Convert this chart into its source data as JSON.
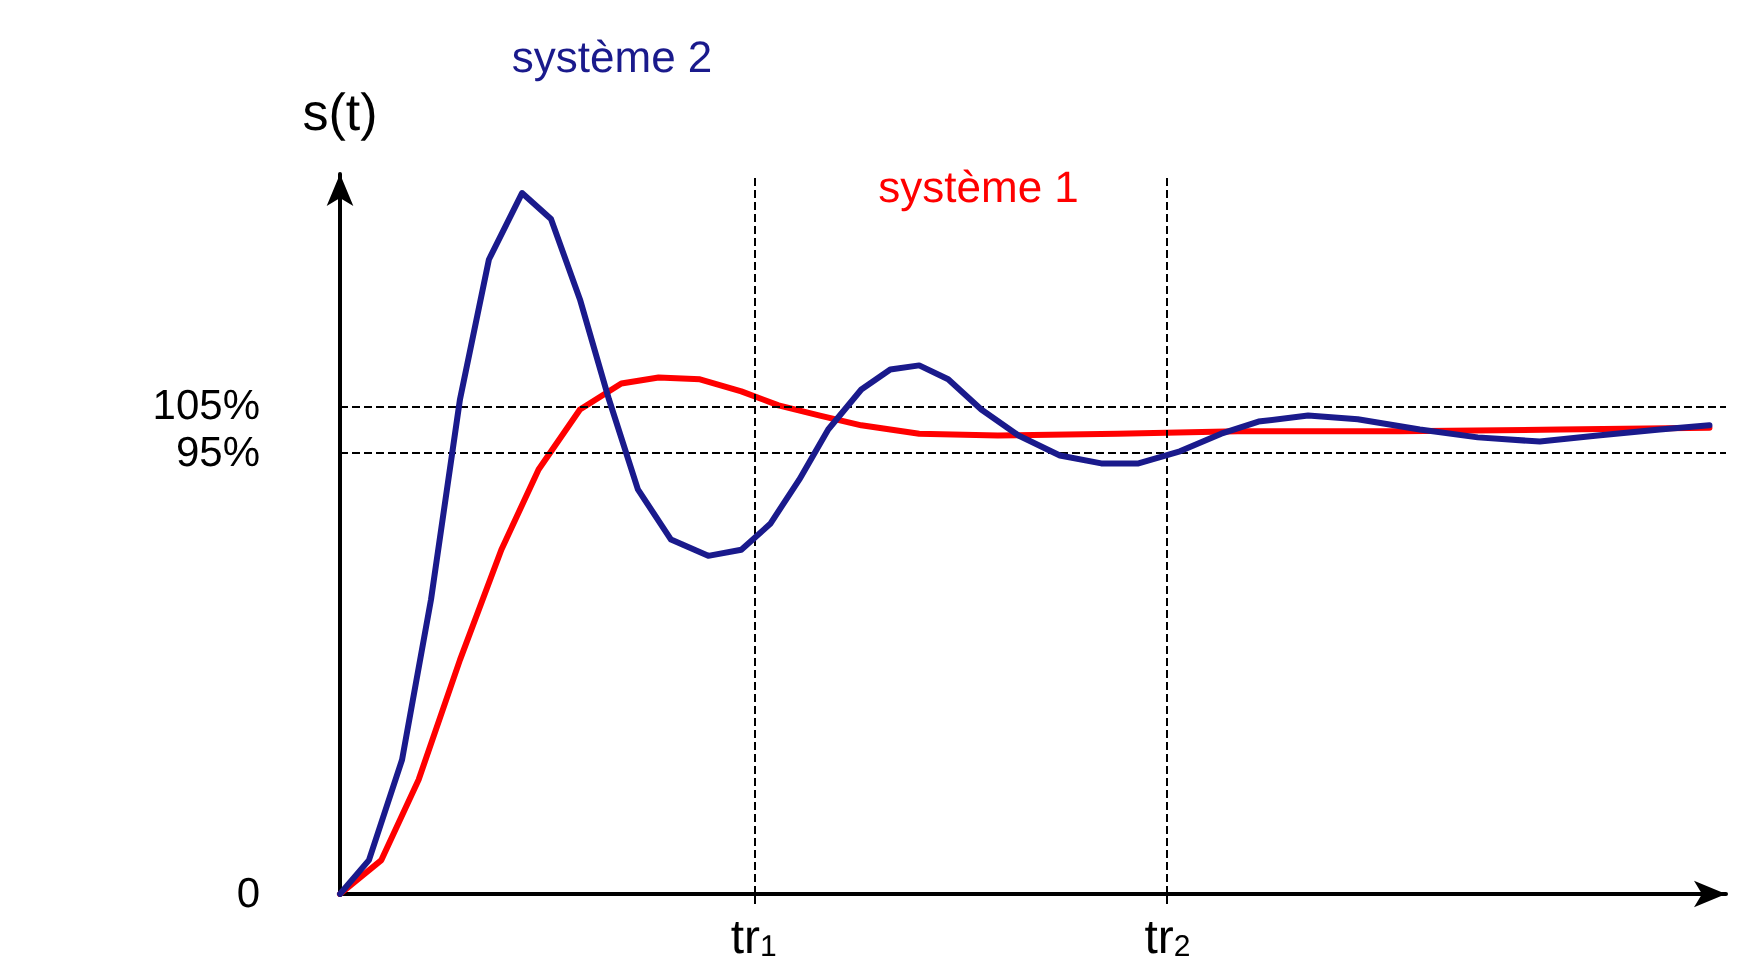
{
  "chart_data": {
    "type": "line",
    "ylabel": "s(t)",
    "xlim": [
      0,
      3.35
    ],
    "ylim": [
      0,
      155
    ],
    "xticks": [
      {
        "value": 1,
        "label": "tr$_{1}$"
      },
      {
        "value": 2,
        "label": "tr$_{2}$"
      }
    ],
    "yticks": [
      0,
      {
        "value": 95,
        "label": "95%"
      },
      {
        "value": 105,
        "label": "105%"
      }
    ],
    "series": [
      {
        "name": "système 2",
        "color": "#1a1a8c",
        "x": [
          0,
          0.07,
          0.15,
          0.22,
          0.29,
          0.36,
          0.44,
          0.51,
          0.58,
          0.65,
          0.72,
          0.8,
          0.89,
          0.97,
          1.04,
          1.11,
          1.18,
          1.26,
          1.33,
          1.4,
          1.47,
          1.55,
          1.64,
          1.74,
          1.84,
          1.93,
          2.03,
          2.13,
          2.22,
          2.34,
          2.46,
          2.61,
          2.75,
          2.9,
          3.04,
          3.19,
          3.31
        ],
        "values": [
          0,
          7.3,
          28.9,
          63.4,
          106.5,
          136.6,
          150.9,
          145.3,
          128,
          106.5,
          87.1,
          76.3,
          72.8,
          74.1,
          79.7,
          89.2,
          100,
          108.6,
          112.9,
          113.8,
          110.8,
          104.3,
          98.7,
          94.4,
          92.7,
          92.7,
          95.3,
          99.1,
          101.7,
          103,
          102.2,
          100,
          98.3,
          97.4,
          98.7,
          100,
          100.9
        ]
      },
      {
        "name": "système 1",
        "color": "#ff0000",
        "x": [
          0,
          0.1,
          0.19,
          0.29,
          0.39,
          0.48,
          0.58,
          0.68,
          0.77,
          0.87,
          0.97,
          1.06,
          1.16,
          1.26,
          1.4,
          1.59,
          1.88,
          2.17,
          2.56,
          2.95,
          3.31
        ],
        "values": [
          0,
          7.3,
          24.6,
          50.4,
          74.1,
          91.4,
          104.3,
          109.9,
          111.2,
          110.8,
          108.2,
          105.2,
          103,
          100.9,
          99.1,
          98.7,
          99.1,
          99.6,
          99.6,
          100,
          100.4
        ]
      }
    ],
    "ref_lines": [
      {
        "axis": "y",
        "value": 105,
        "color": "#000000",
        "line_style": "dashed"
      },
      {
        "axis": "y",
        "value": 95,
        "color": "#000000",
        "line_style": "dashed"
      },
      {
        "axis": "x",
        "value": 1,
        "color": "#000000",
        "line_style": "dashed"
      },
      {
        "axis": "x",
        "value": 2,
        "color": "#000000",
        "line_style": "dashed"
      }
    ],
    "marker": "none",
    "line_style": "solid",
    "grid": false,
    "legend": false
  }
}
